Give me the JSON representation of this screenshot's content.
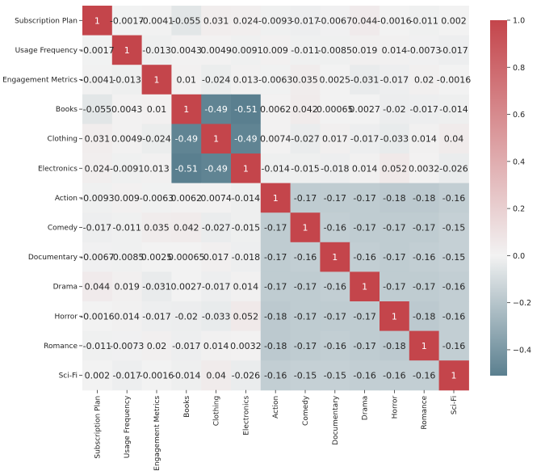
{
  "chart_data": {
    "type": "heatmap",
    "title": "",
    "labels": [
      "Subscription Plan",
      "Usage Frequency",
      "Engagement Metrics",
      "Books",
      "Clothing",
      "Electronics",
      "Action",
      "Comedy",
      "Documentary",
      "Drama",
      "Horror",
      "Romance",
      "Sci-Fi"
    ],
    "cell_labels": [
      [
        "1",
        "-0.0017",
        "-0.0041",
        "-0.055",
        "0.031",
        "0.024",
        "-0.0093",
        "-0.017",
        "-0.0067",
        "0.044",
        "-0.0016",
        "-0.011",
        "0.002"
      ],
      [
        "-0.0017",
        "1",
        "-0.013",
        "0.0043",
        "0.0049",
        "-0.0091",
        "0.009",
        "-0.011",
        "-0.0085",
        "0.019",
        "0.014",
        "-0.0073",
        "-0.017"
      ],
      [
        "-0.0041",
        "-0.013",
        "1",
        "0.01",
        "-0.024",
        "0.013",
        "-0.0063",
        "0.035",
        "0.0025",
        "-0.031",
        "-0.017",
        "0.02",
        "-0.0016"
      ],
      [
        "-0.055",
        "0.0043",
        "0.01",
        "1",
        "-0.49",
        "-0.51",
        "0.0062",
        "0.042",
        "0.00065",
        "0.0027",
        "-0.02",
        "-0.017",
        "-0.014"
      ],
      [
        "0.031",
        "0.0049",
        "-0.024",
        "-0.49",
        "1",
        "-0.49",
        "0.0074",
        "-0.027",
        "0.017",
        "-0.017",
        "-0.033",
        "0.014",
        "0.04"
      ],
      [
        "0.024",
        "-0.0091",
        "0.013",
        "-0.51",
        "-0.49",
        "1",
        "-0.014",
        "-0.015",
        "-0.018",
        "0.014",
        "0.052",
        "0.0032",
        "-0.026"
      ],
      [
        "-0.0093",
        "0.009",
        "-0.0063",
        "0.0062",
        "0.0074",
        "-0.014",
        "1",
        "-0.17",
        "-0.17",
        "-0.17",
        "-0.18",
        "-0.18",
        "-0.16"
      ],
      [
        "-0.017",
        "-0.011",
        "0.035",
        "0.042",
        "-0.027",
        "-0.015",
        "-0.17",
        "1",
        "-0.16",
        "-0.17",
        "-0.17",
        "-0.17",
        "-0.15"
      ],
      [
        "-0.0067",
        "-0.0085",
        "0.0025",
        "0.00065",
        "0.017",
        "-0.018",
        "-0.17",
        "-0.16",
        "1",
        "-0.16",
        "-0.17",
        "-0.16",
        "-0.15"
      ],
      [
        "0.044",
        "0.019",
        "-0.031",
        "0.0027",
        "-0.017",
        "0.014",
        "-0.17",
        "-0.17",
        "-0.16",
        "1",
        "-0.17",
        "-0.17",
        "-0.16"
      ],
      [
        "-0.0016",
        "0.014",
        "-0.017",
        "-0.02",
        "-0.033",
        "0.052",
        "-0.18",
        "-0.17",
        "-0.17",
        "-0.17",
        "1",
        "-0.18",
        "-0.16"
      ],
      [
        "-0.011",
        "-0.0073",
        "0.02",
        "-0.017",
        "0.014",
        "0.0032",
        "-0.18",
        "-0.17",
        "-0.16",
        "-0.17",
        "-0.18",
        "1",
        "-0.16"
      ],
      [
        "0.002",
        "-0.017",
        "-0.0016",
        "-0.014",
        "0.04",
        "-0.026",
        "-0.16",
        "-0.15",
        "-0.15",
        "-0.16",
        "-0.16",
        "-0.16",
        "1"
      ]
    ],
    "colorbar": {
      "range": [
        -0.51,
        1.0
      ],
      "ticks": [
        -0.4,
        -0.2,
        0.0,
        0.2,
        0.4,
        0.6,
        0.8,
        1.0
      ],
      "tick_labels": [
        "−0.4",
        "−0.2",
        "0.0",
        "0.2",
        "0.4",
        "0.6",
        "0.8",
        "1.0"
      ],
      "low_color": "#5a7f8f",
      "mid_color": "#f2f2f2",
      "high_color": "#c4454b"
    },
    "cell_text_dark": "#262626",
    "cell_text_light": "#ffffff"
  }
}
